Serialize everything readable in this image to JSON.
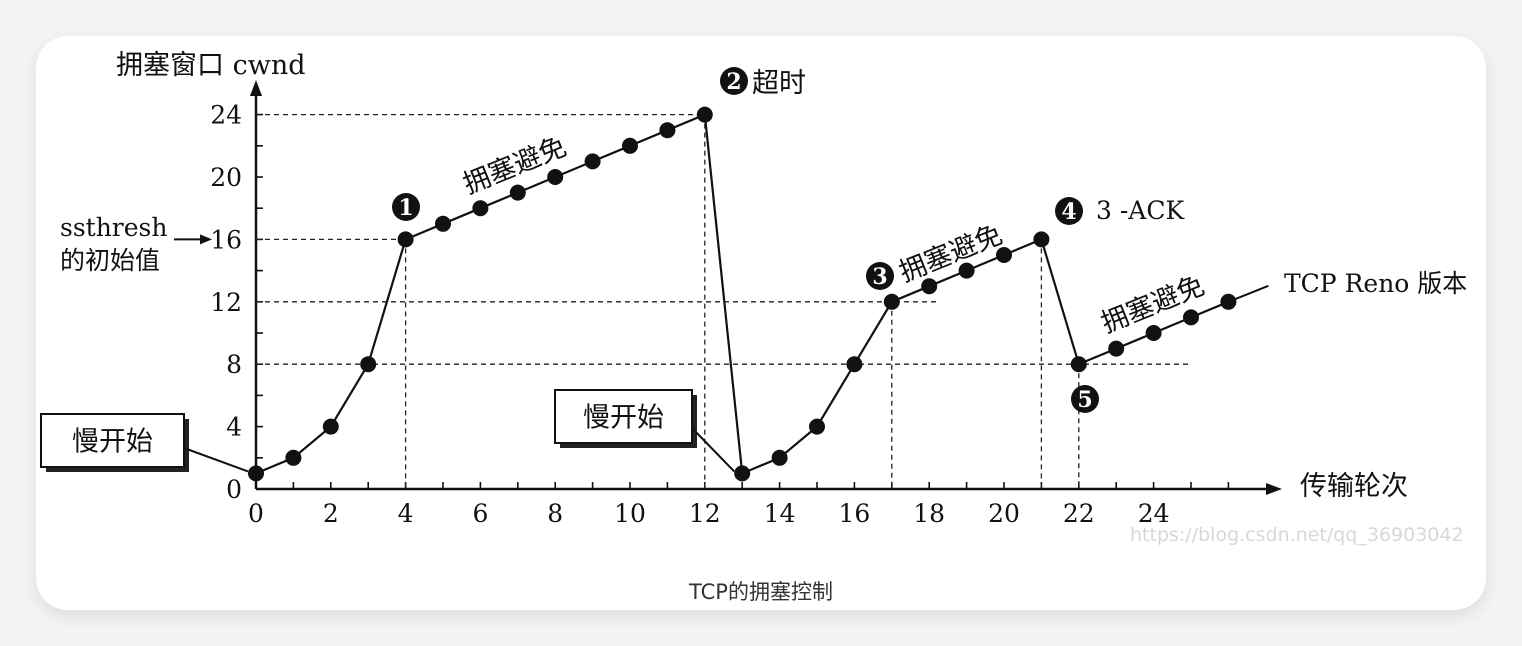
{
  "caption": "TCP的拥塞控制",
  "watermark": "https://blog.csdn.net/qq_36903042",
  "chart_data": {
    "type": "line",
    "ylabel": "拥塞窗口 cwnd",
    "xlabel": "传输轮次",
    "xticks": [
      "0",
      "2",
      "4",
      "6",
      "8",
      "10",
      "12",
      "14",
      "16",
      "18",
      "20",
      "22",
      "24"
    ],
    "yticks": [
      "0",
      "4",
      "8",
      "12",
      "16",
      "20",
      "24"
    ],
    "xlim": [
      0,
      27
    ],
    "ylim": [
      0,
      26
    ],
    "series": [
      {
        "x": [
          0,
          1,
          2,
          3,
          4,
          5,
          6,
          7,
          8,
          9,
          10,
          11,
          12
        ],
        "values": [
          1,
          2,
          4,
          8,
          16,
          17,
          18,
          19,
          20,
          21,
          22,
          23,
          24
        ]
      },
      {
        "x": [
          13,
          14,
          15,
          16,
          17,
          18,
          19,
          20,
          21
        ],
        "values": [
          1,
          2,
          4,
          8,
          12,
          13,
          14,
          15,
          16
        ]
      },
      {
        "x": [
          22,
          23,
          24,
          25,
          26
        ],
        "values": [
          8,
          9,
          10,
          11,
          12
        ]
      }
    ],
    "annotations": {
      "ssthresh_line1": "ssthresh",
      "ssthresh_line2": "的初始值",
      "slow_start": "慢开始",
      "congestion_avoidance": "拥塞避免",
      "timeout": "超时",
      "three_ack": "3 -ACK",
      "reno": "TCP Reno 版本",
      "markers": [
        "1",
        "2",
        "3",
        "4",
        "5"
      ]
    }
  }
}
